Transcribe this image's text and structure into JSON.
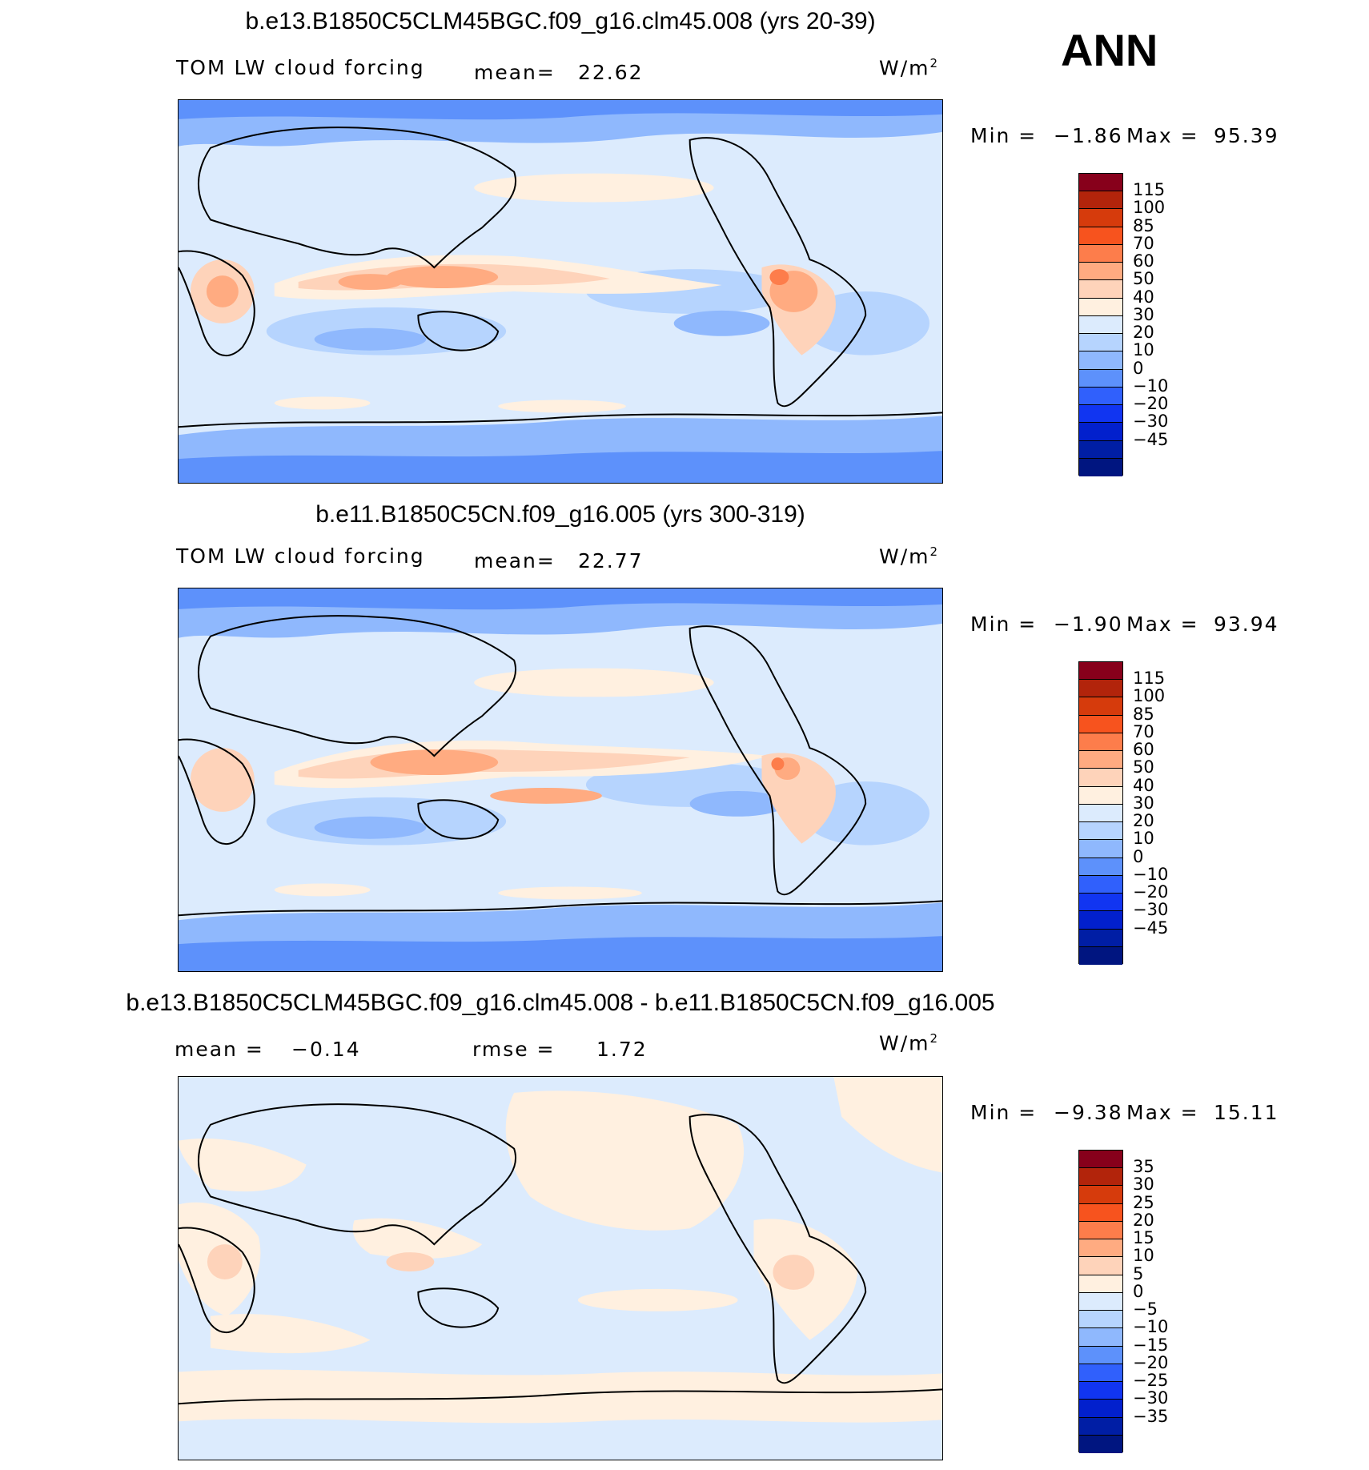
{
  "season": "ANN",
  "units_base": "W/m",
  "units_exp": "2",
  "palette_abs": [
    "#87001b",
    "#b2240b",
    "#d63b0c",
    "#f7531e",
    "#fd7d4b",
    "#ffab81",
    "#fed3ba",
    "#fff0e0",
    "#dcebfd",
    "#b6d4fe",
    "#8fb8fd",
    "#5d91fb",
    "#3060fc",
    "#1135f1",
    "#0220cd",
    "#001ea5",
    "#001580"
  ],
  "palette_diff": [
    "#87001b",
    "#b2240b",
    "#d63b0c",
    "#f7531e",
    "#fd7d4b",
    "#ffab81",
    "#fed3ba",
    "#fff0e0",
    "#dcebfd",
    "#b6d4fe",
    "#8fb8fd",
    "#5d91fb",
    "#3060fc",
    "#1135f1",
    "#0220cd",
    "#001ea5",
    "#001580"
  ],
  "panels": [
    {
      "title": "b.e13.B1850C5CLM45BGC.f09_g16.clm45.008 (yrs 20-39)",
      "left_label": "TOM LW cloud forcing",
      "mid_label": "mean=",
      "mid_value": "22.62",
      "min_label": "Min =",
      "min_value": "−1.86",
      "max_label": "Max =",
      "max_value": "95.39",
      "ticks": [
        "115",
        "100",
        "85",
        "70",
        "60",
        "50",
        "40",
        "30",
        "20",
        "10",
        "0",
        "−10",
        "−20",
        "−30",
        "−45"
      ]
    },
    {
      "title": "b.e11.B1850C5CN.f09_g16.005 (yrs 300-319)",
      "left_label": "TOM LW cloud forcing",
      "mid_label": "mean=",
      "mid_value": "22.77",
      "min_label": "Min =",
      "min_value": "−1.90",
      "max_label": "Max =",
      "max_value": "93.94",
      "ticks": [
        "115",
        "100",
        "85",
        "70",
        "60",
        "50",
        "40",
        "30",
        "20",
        "10",
        "0",
        "−10",
        "−20",
        "−30",
        "−45"
      ]
    },
    {
      "title": "b.e13.B1850C5CLM45BGC.f09_g16.clm45.008 - b.e11.B1850C5CN.f09_g16.005",
      "left_label": "mean =",
      "left_value": "−0.14",
      "mid_label": "rmse =",
      "mid_value": "1.72",
      "min_label": "Min =",
      "min_value": "−9.38",
      "max_label": "Max =",
      "max_value": "15.11",
      "ticks": [
        "35",
        "30",
        "25",
        "20",
        "15",
        "10",
        "5",
        "0",
        "−5",
        "−10",
        "−15",
        "−20",
        "−25",
        "−30",
        "−35"
      ]
    }
  ]
}
